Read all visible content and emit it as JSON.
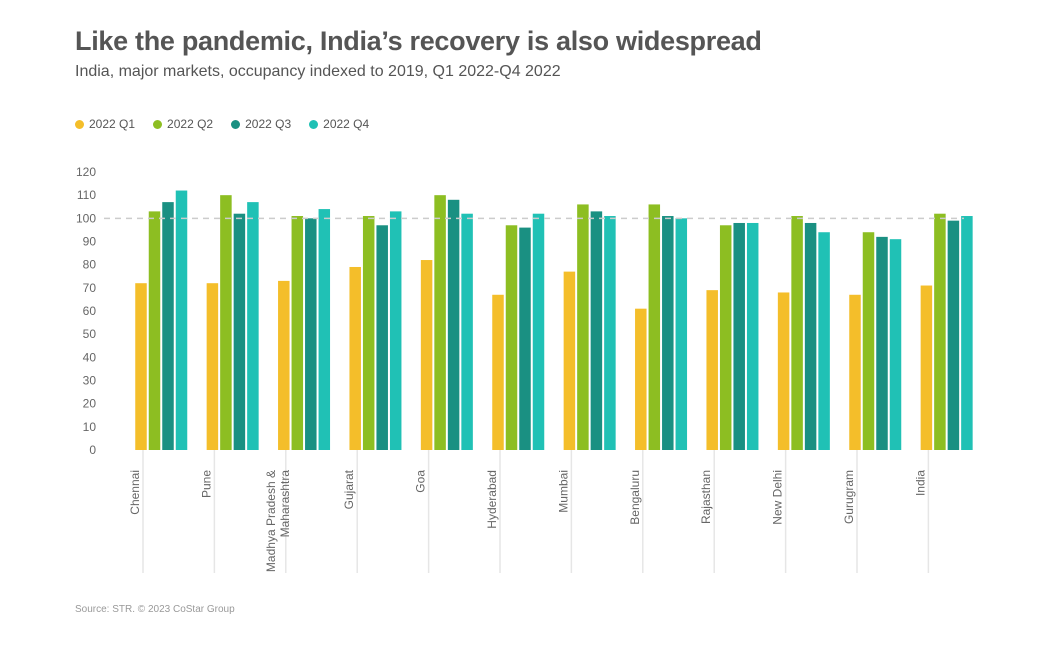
{
  "title": "Like the pandemic, India’s recovery is also widespread",
  "subtitle": "India, major markets, occupancy indexed to 2019, Q1 2022-Q4 2022",
  "source": "Source: STR. © 2023 CoStar Group",
  "colors": {
    "q1": "#F4BE2A",
    "q2": "#8DBE22",
    "q3": "#1A9082",
    "q4": "#20C1B5",
    "reference_line": "#cccccc",
    "category_divider": "#e6e6e6"
  },
  "chart_data": {
    "type": "bar",
    "title": "Like the pandemic, India’s recovery is also widespread",
    "subtitle": "India, major markets, occupancy indexed to 2019, Q1 2022-Q4 2022",
    "categories": [
      "Chennai",
      "Pune",
      "Madhya Pradesh & Maharashtra",
      "Gujarat",
      "Goa",
      "Hyderabad",
      "Mumbai",
      "Bengaluru",
      "Rajasthan",
      "New Delhi",
      "Gurugram",
      "India"
    ],
    "category_lines": [
      [
        "Chennai"
      ],
      [
        "Pune"
      ],
      [
        "Madhya Pradesh &",
        "Maharashtra"
      ],
      [
        "Gujarat"
      ],
      [
        "Goa"
      ],
      [
        "Hyderabad"
      ],
      [
        "Mumbai"
      ],
      [
        "Bengaluru"
      ],
      [
        "Rajasthan"
      ],
      [
        "New Delhi"
      ],
      [
        "Gurugram"
      ],
      [
        "India"
      ]
    ],
    "series": [
      {
        "name": "2022 Q1",
        "color": "#F4BE2A",
        "values": [
          72,
          72,
          73,
          79,
          82,
          67,
          77,
          61,
          69,
          68,
          67,
          71
        ]
      },
      {
        "name": "2022 Q2",
        "color": "#8DBE22",
        "values": [
          103,
          110,
          101,
          101,
          110,
          97,
          106,
          106,
          97,
          101,
          94,
          102
        ]
      },
      {
        "name": "2022 Q3",
        "color": "#1A9082",
        "values": [
          107,
          102,
          100,
          97,
          108,
          96,
          103,
          101,
          98,
          98,
          92,
          99
        ]
      },
      {
        "name": "2022 Q4",
        "color": "#20C1B5",
        "values": [
          112,
          107,
          104,
          103,
          102,
          102,
          101,
          100,
          98,
          94,
          91,
          101
        ]
      }
    ],
    "ylim": [
      0,
      120
    ],
    "yticks": [
      0,
      10,
      20,
      30,
      40,
      50,
      60,
      70,
      80,
      90,
      100,
      110,
      120
    ],
    "reference_line": 100,
    "legend_position": "top-left",
    "grid": false
  }
}
